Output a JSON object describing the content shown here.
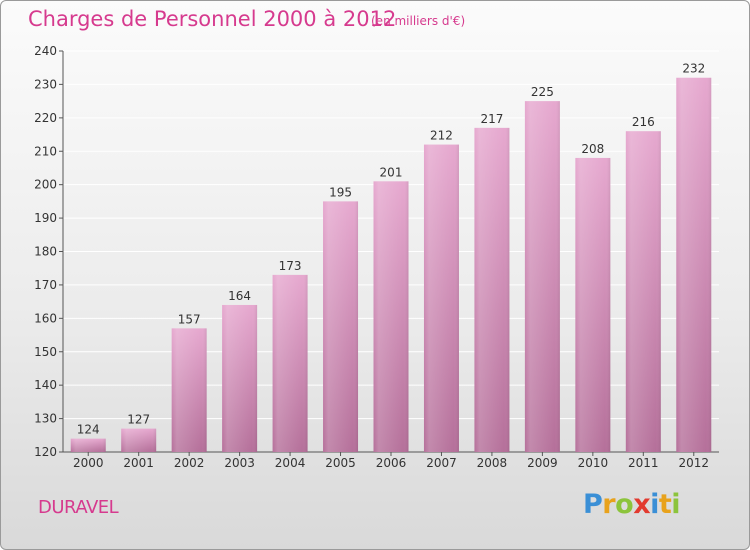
{
  "header": {
    "title": "Charges de Personnel 2000 à 2012",
    "subtitle": "(en milliers d'€)"
  },
  "footer": {
    "city": "DURAVEL",
    "brand": "Proxiti",
    "brand_letters": [
      {
        "char": "P",
        "color": "#3a8fd6"
      },
      {
        "char": "r",
        "color": "#e8a21c"
      },
      {
        "char": "o",
        "color": "#8cc43c"
      },
      {
        "char": "x",
        "color": "#e23a2f"
      },
      {
        "char": "i",
        "color": "#3a8fd6"
      },
      {
        "char": "t",
        "color": "#e8a21c"
      },
      {
        "char": "i",
        "color": "#8cc43c"
      }
    ]
  },
  "colors": {
    "accent": "#d63a8e",
    "bar_top": "#e6a8cf",
    "bar_bottom": "#b5709a",
    "grid": "#ffffff",
    "axis": "#555555"
  },
  "chart_data": {
    "type": "bar",
    "title": "Charges de Personnel 2000 à 2012",
    "subtitle": "(en milliers d'€)",
    "categories": [
      "2000",
      "2001",
      "2002",
      "2003",
      "2004",
      "2005",
      "2006",
      "2007",
      "2008",
      "2009",
      "2010",
      "2011",
      "2012"
    ],
    "values": [
      124,
      127,
      157,
      164,
      173,
      195,
      201,
      212,
      217,
      225,
      208,
      216,
      232
    ],
    "xlabel": "",
    "ylabel": "",
    "ylim": [
      120,
      240
    ],
    "yticks": [
      120,
      130,
      140,
      150,
      160,
      170,
      180,
      190,
      200,
      210,
      220,
      230,
      240
    ],
    "grid": true,
    "data_labels": true
  }
}
